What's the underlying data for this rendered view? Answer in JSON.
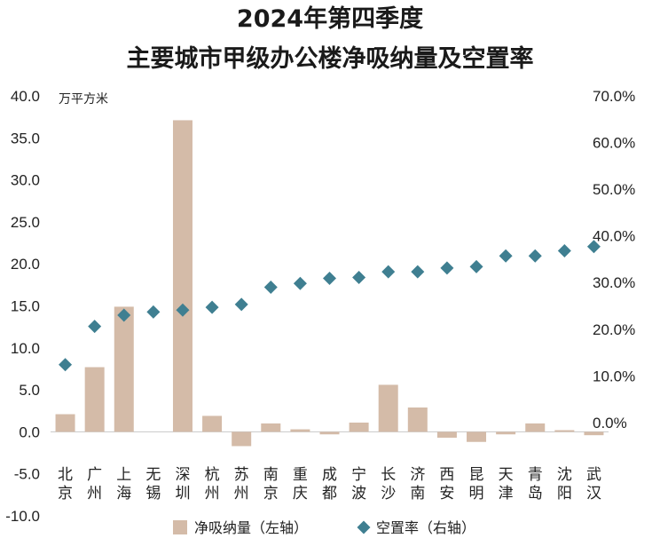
{
  "chart_data": {
    "type": "bar",
    "title_lines": [
      "2024年第四季度",
      "主要城市甲级办公楼净吸纳量及空置率"
    ],
    "unit_label": "万平方米",
    "categories": [
      "北京",
      "广州",
      "上海",
      "无锡",
      "深圳",
      "杭州",
      "苏州",
      "南京",
      "重庆",
      "成都",
      "宁波",
      "长沙",
      "济南",
      "西安",
      "昆明",
      "天津",
      "青岛",
      "沈阳",
      "武汉"
    ],
    "left_axis": {
      "ylim": [
        -10,
        40
      ],
      "ticks": [
        "-10.0",
        "-5.0",
        "0.0",
        "5.0",
        "10.0",
        "15.0",
        "20.0",
        "25.0",
        "30.0",
        "35.0",
        "40.0"
      ]
    },
    "right_axis": {
      "ylim": [
        -0.2,
        0.7
      ],
      "ticks": [
        "0.0%",
        "10.0%",
        "20.0%",
        "30.0%",
        "40.0%",
        "50.0%",
        "60.0%",
        "70.0%"
      ]
    },
    "series": [
      {
        "name": "净吸纳量（左轴）",
        "type": "bar",
        "axis": "left",
        "color": "#d4bba8",
        "values": [
          2.1,
          7.7,
          14.9,
          0.0,
          37.1,
          1.9,
          -1.7,
          1.0,
          0.3,
          -0.3,
          1.1,
          5.6,
          2.9,
          -0.7,
          -1.2,
          -0.3,
          1.0,
          0.2,
          -0.4
        ]
      },
      {
        "name": "空置率（右轴）",
        "type": "scatter",
        "axis": "right",
        "color": "#3f7f91",
        "marker": "diamond",
        "values": [
          0.124,
          0.206,
          0.23,
          0.237,
          0.241,
          0.247,
          0.253,
          0.29,
          0.298,
          0.309,
          0.311,
          0.323,
          0.323,
          0.331,
          0.334,
          0.357,
          0.357,
          0.368,
          0.377
        ]
      }
    ],
    "legend_position": "bottom"
  }
}
